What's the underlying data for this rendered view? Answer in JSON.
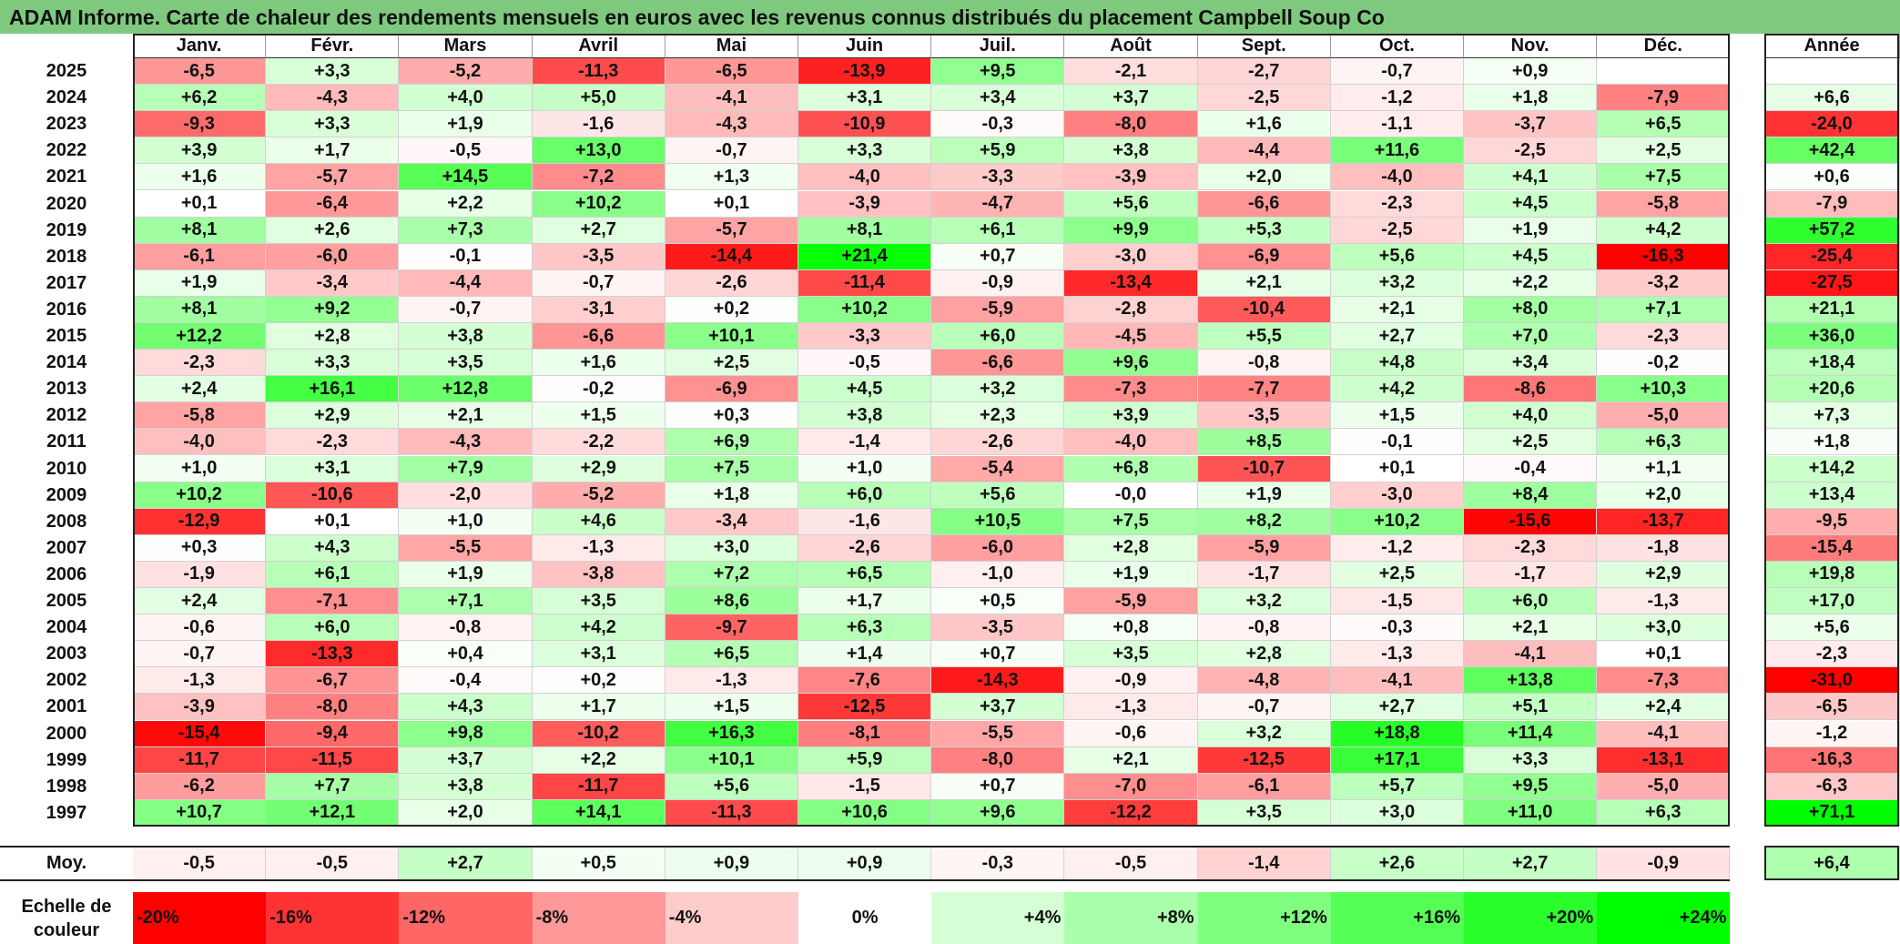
{
  "title": "ADAM Informe. Carte de chaleur des rendements mensuels en euros avec les revenus connus distribués du placement Campbell Soup Co",
  "chart_data": {
    "type": "heatmap",
    "title": "ADAM Informe. Carte de chaleur des rendements mensuels en euros avec les revenus connus distribués du placement Campbell Soup Co",
    "months": [
      "Janv.",
      "Févr.",
      "Mars",
      "Avril",
      "Mai",
      "Juin",
      "Juil.",
      "Août",
      "Sept.",
      "Oct.",
      "Nov.",
      "Déc."
    ],
    "annual_header": "Année",
    "rows": [
      {
        "year": "2025",
        "values": [
          "-6,5",
          "+3,3",
          "-5,2",
          "-11,3",
          "-6,5",
          "-13,9",
          "+9,5",
          "-2,1",
          "-2,7",
          "-0,7",
          "+0,9",
          ""
        ],
        "annual": ""
      },
      {
        "year": "2024",
        "values": [
          "+6,2",
          "-4,3",
          "+4,0",
          "+5,0",
          "-4,1",
          "+3,1",
          "+3,4",
          "+3,7",
          "-2,5",
          "-1,2",
          "+1,8",
          "-7,9"
        ],
        "annual": "+6,6"
      },
      {
        "year": "2023",
        "values": [
          "-9,3",
          "+3,3",
          "+1,9",
          "-1,6",
          "-4,3",
          "-10,9",
          "-0,3",
          "-8,0",
          "+1,6",
          "-1,1",
          "-3,7",
          "+6,5"
        ],
        "annual": "-24,0"
      },
      {
        "year": "2022",
        "values": [
          "+3,9",
          "+1,7",
          "-0,5",
          "+13,0",
          "-0,7",
          "+3,3",
          "+5,9",
          "+3,8",
          "-4,4",
          "+11,6",
          "-2,5",
          "+2,5"
        ],
        "annual": "+42,4"
      },
      {
        "year": "2021",
        "values": [
          "+1,6",
          "-5,7",
          "+14,5",
          "-7,2",
          "+1,3",
          "-4,0",
          "-3,3",
          "-3,9",
          "+2,0",
          "-4,0",
          "+4,1",
          "+7,5"
        ],
        "annual": "+0,6"
      },
      {
        "year": "2020",
        "values": [
          "+0,1",
          "-6,4",
          "+2,2",
          "+10,2",
          "+0,1",
          "-3,9",
          "-4,7",
          "+5,6",
          "-6,6",
          "-2,3",
          "+4,5",
          "-5,8"
        ],
        "annual": "-7,9"
      },
      {
        "year": "2019",
        "values": [
          "+8,1",
          "+2,6",
          "+7,3",
          "+2,7",
          "-5,7",
          "+8,1",
          "+6,1",
          "+9,9",
          "+5,3",
          "-2,5",
          "+1,9",
          "+4,2"
        ],
        "annual": "+57,2"
      },
      {
        "year": "2018",
        "values": [
          "-6,1",
          "-6,0",
          "-0,1",
          "-3,5",
          "-14,4",
          "+21,4",
          "+0,7",
          "-3,0",
          "-6,9",
          "+5,6",
          "+4,5",
          "-16,3"
        ],
        "annual": "-25,4"
      },
      {
        "year": "2017",
        "values": [
          "+1,9",
          "-3,4",
          "-4,4",
          "-0,7",
          "-2,6",
          "-11,4",
          "-0,9",
          "-13,4",
          "+2,1",
          "+3,2",
          "+2,2",
          "-3,2"
        ],
        "annual": "-27,5"
      },
      {
        "year": "2016",
        "values": [
          "+8,1",
          "+9,2",
          "-0,7",
          "-3,1",
          "+0,2",
          "+10,2",
          "-5,9",
          "-2,8",
          "-10,4",
          "+2,1",
          "+8,0",
          "+7,1"
        ],
        "annual": "+21,1"
      },
      {
        "year": "2015",
        "values": [
          "+12,2",
          "+2,8",
          "+3,8",
          "-6,6",
          "+10,1",
          "-3,3",
          "+6,0",
          "-4,5",
          "+5,5",
          "+2,7",
          "+7,0",
          "-2,3"
        ],
        "annual": "+36,0"
      },
      {
        "year": "2014",
        "values": [
          "-2,3",
          "+3,3",
          "+3,5",
          "+1,6",
          "+2,5",
          "-0,5",
          "-6,6",
          "+9,6",
          "-0,8",
          "+4,8",
          "+3,4",
          "-0,2"
        ],
        "annual": "+18,4"
      },
      {
        "year": "2013",
        "values": [
          "+2,4",
          "+16,1",
          "+12,8",
          "-0,2",
          "-6,9",
          "+4,5",
          "+3,2",
          "-7,3",
          "-7,7",
          "+4,2",
          "-8,6",
          "+10,3"
        ],
        "annual": "+20,6"
      },
      {
        "year": "2012",
        "values": [
          "-5,8",
          "+2,9",
          "+2,1",
          "+1,5",
          "+0,3",
          "+3,8",
          "+2,3",
          "+3,9",
          "-3,5",
          "+1,5",
          "+4,0",
          "-5,0"
        ],
        "annual": "+7,3"
      },
      {
        "year": "2011",
        "values": [
          "-4,0",
          "-2,3",
          "-4,3",
          "-2,2",
          "+6,9",
          "-1,4",
          "-2,6",
          "-4,0",
          "+8,5",
          "-0,1",
          "+2,5",
          "+6,3"
        ],
        "annual": "+1,8"
      },
      {
        "year": "2010",
        "values": [
          "+1,0",
          "+3,1",
          "+7,9",
          "+2,9",
          "+7,5",
          "+1,0",
          "-5,4",
          "+6,8",
          "-10,7",
          "+0,1",
          "-0,4",
          "+1,1"
        ],
        "annual": "+14,2"
      },
      {
        "year": "2009",
        "values": [
          "+10,2",
          "-10,6",
          "-2,0",
          "-5,2",
          "+1,8",
          "+6,0",
          "+5,6",
          "-0,0",
          "+1,9",
          "-3,0",
          "+8,4",
          "+2,0"
        ],
        "annual": "+13,4"
      },
      {
        "year": "2008",
        "values": [
          "-12,9",
          "+0,1",
          "+1,0",
          "+4,6",
          "-3,4",
          "-1,6",
          "+10,5",
          "+7,5",
          "+8,2",
          "+10,2",
          "-15,6",
          "-13,7"
        ],
        "annual": "-9,5"
      },
      {
        "year": "2007",
        "values": [
          "+0,3",
          "+4,3",
          "-5,5",
          "-1,3",
          "+3,0",
          "-2,6",
          "-6,0",
          "+2,8",
          "-5,9",
          "-1,2",
          "-2,3",
          "-1,8"
        ],
        "annual": "-15,4"
      },
      {
        "year": "2006",
        "values": [
          "-1,9",
          "+6,1",
          "+1,9",
          "-3,8",
          "+7,2",
          "+6,5",
          "-1,0",
          "+1,9",
          "-1,7",
          "+2,5",
          "-1,7",
          "+2,9"
        ],
        "annual": "+19,8"
      },
      {
        "year": "2005",
        "values": [
          "+2,4",
          "-7,1",
          "+7,1",
          "+3,5",
          "+8,6",
          "+1,7",
          "+0,5",
          "-5,9",
          "+3,2",
          "-1,5",
          "+6,0",
          "-1,3"
        ],
        "annual": "+17,0"
      },
      {
        "year": "2004",
        "values": [
          "-0,6",
          "+6,0",
          "-0,8",
          "+4,2",
          "-9,7",
          "+6,3",
          "-3,5",
          "+0,8",
          "-0,8",
          "-0,3",
          "+2,1",
          "+3,0"
        ],
        "annual": "+5,6"
      },
      {
        "year": "2003",
        "values": [
          "-0,7",
          "-13,3",
          "+0,4",
          "+3,1",
          "+6,5",
          "+1,4",
          "+0,7",
          "+3,5",
          "+2,8",
          "-1,3",
          "-4,1",
          "+0,1"
        ],
        "annual": "-2,3"
      },
      {
        "year": "2002",
        "values": [
          "-1,3",
          "-6,7",
          "-0,4",
          "+0,2",
          "-1,3",
          "-7,6",
          "-14,3",
          "-0,9",
          "-4,8",
          "-4,1",
          "+13,8",
          "-7,3"
        ],
        "annual": "-31,0"
      },
      {
        "year": "2001",
        "values": [
          "-3,9",
          "-8,0",
          "+4,3",
          "+1,7",
          "+1,5",
          "-12,5",
          "+3,7",
          "-1,3",
          "-0,7",
          "+2,7",
          "+5,1",
          "+2,4"
        ],
        "annual": "-6,5"
      },
      {
        "year": "2000",
        "values": [
          "-15,4",
          "-9,4",
          "+9,8",
          "-10,2",
          "+16,3",
          "-8,1",
          "-5,5",
          "-0,6",
          "+3,2",
          "+18,8",
          "+11,4",
          "-4,1"
        ],
        "annual": "-1,2"
      },
      {
        "year": "1999",
        "values": [
          "-11,7",
          "-11,5",
          "+3,7",
          "+2,2",
          "+10,1",
          "+5,9",
          "-8,0",
          "+2,1",
          "-12,5",
          "+17,1",
          "+3,3",
          "-13,1"
        ],
        "annual": "-16,3"
      },
      {
        "year": "1998",
        "values": [
          "-6,2",
          "+7,7",
          "+3,8",
          "-11,7",
          "+5,6",
          "-1,5",
          "+0,7",
          "-7,0",
          "-6,1",
          "+5,7",
          "+9,5",
          "-5,0"
        ],
        "annual": "-6,3"
      },
      {
        "year": "1997",
        "values": [
          "+10,7",
          "+12,1",
          "+2,0",
          "+14,1",
          "-11,3",
          "+10,6",
          "+9,6",
          "-12,2",
          "+3,5",
          "+3,0",
          "+11,0",
          "+6,3"
        ],
        "annual": "+71,1"
      }
    ],
    "average_row": {
      "label": "Moy.",
      "values": [
        "-0,5",
        "-0,5",
        "+2,7",
        "+0,5",
        "+0,9",
        "+0,9",
        "-0,3",
        "-0,5",
        "-1,4",
        "+2,6",
        "+2,7",
        "-0,9"
      ],
      "annual": "+6,4"
    },
    "scale": {
      "label": "Echelle de couleur",
      "stops": [
        "-20%",
        "-16%",
        "-12%",
        "-8%",
        "-4%",
        "0%",
        "+4%",
        "+8%",
        "+12%",
        "+16%",
        "+20%",
        "+24%"
      ],
      "stop_values": [
        -20,
        -16,
        -12,
        -8,
        -4,
        0,
        4,
        8,
        12,
        16,
        20,
        24
      ]
    },
    "colors": {
      "negative_max": "#ff0000",
      "neutral": "#ffffff",
      "positive_max": "#00ff00",
      "title_bg": "#7fc97f"
    }
  }
}
